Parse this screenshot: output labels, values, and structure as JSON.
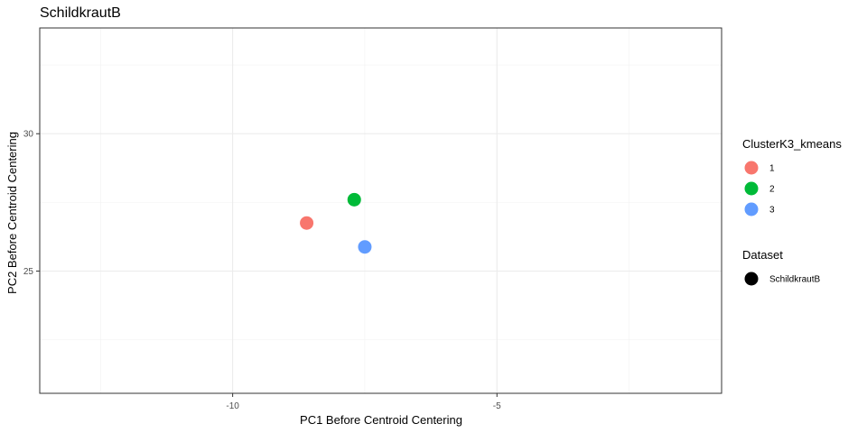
{
  "chart_data": {
    "type": "scatter",
    "title": "SchildkrautB",
    "xlabel": "PC1 Before Centroid Centering",
    "ylabel": "PC2 Before Centroid Centering",
    "xlim": [
      -13.65,
      -0.75
    ],
    "ylim": [
      20.55,
      33.85
    ],
    "x_ticks": [
      -10,
      -5
    ],
    "x_tick_labels": [
      "-10",
      "-5"
    ],
    "x_minor_breaks": [
      -12.5,
      -7.5,
      -2.5
    ],
    "y_ticks": [
      25,
      30
    ],
    "y_tick_labels": [
      "25",
      "30"
    ],
    "y_minor_breaks": [
      22.5,
      27.5,
      32.5
    ],
    "grid": true,
    "legend_position": "right",
    "points": [
      {
        "x": -8.6,
        "y": 26.75,
        "cluster": "1",
        "dataset": "SchildkrautB",
        "color": "#F8766D"
      },
      {
        "x": -7.7,
        "y": 27.6,
        "cluster": "2",
        "dataset": "SchildkrautB",
        "color": "#00BA38"
      },
      {
        "x": -7.5,
        "y": 25.88,
        "cluster": "3",
        "dataset": "SchildkrautB",
        "color": "#619CFF"
      }
    ],
    "legends": [
      {
        "title": "ClusterK3_kmeans",
        "entries": [
          {
            "label": "1",
            "color": "#F8766D"
          },
          {
            "label": "2",
            "color": "#00BA38"
          },
          {
            "label": "3",
            "color": "#619CFF"
          }
        ]
      },
      {
        "title": "Dataset",
        "entries": [
          {
            "label": "SchildkrautB",
            "color": "#000000"
          }
        ]
      }
    ]
  }
}
